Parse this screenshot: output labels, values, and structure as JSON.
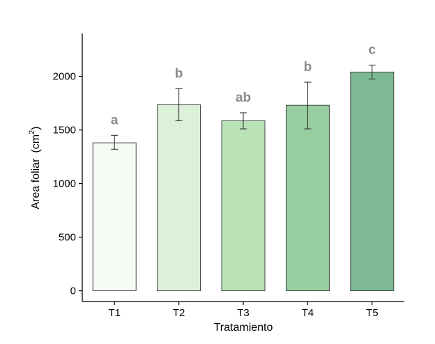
{
  "chart_data": {
    "type": "bar",
    "categories": [
      "T1",
      "T2",
      "T3",
      "T4",
      "T5"
    ],
    "values": [
      1380,
      1735,
      1585,
      1730,
      2040
    ],
    "errors": [
      [
        1320,
        1450
      ],
      [
        1585,
        1885
      ],
      [
        1510,
        1660
      ],
      [
        1510,
        1945
      ],
      [
        1975,
        2105
      ]
    ],
    "significance_letters": [
      "a",
      "b",
      "ab",
      "b",
      "c"
    ],
    "bar_colors": [
      "#f5faf3",
      "#dcf0da",
      "#b9e2b7",
      "#97cfa0",
      "#7db994"
    ],
    "xlabel": "Tratamiento",
    "ylabel": "Area foliar",
    "ylabel_unit": "(cm",
    "ylabel_unit_sup": "2",
    "ylabel_unit_close": ")",
    "yticks": [
      0,
      500,
      1000,
      1500,
      2000
    ],
    "ylim": [
      -100,
      2400
    ],
    "grid": false
  }
}
